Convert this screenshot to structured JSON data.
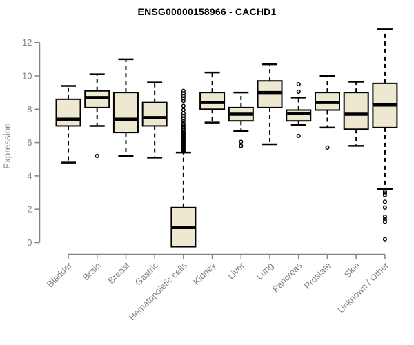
{
  "page": {
    "background": "#ffffff"
  },
  "chart_data": {
    "type": "boxplot",
    "title": "ENSG00000158966 - CACHD1",
    "ylabel": "Expression",
    "xlabel": "",
    "ylim": [
      0,
      12
    ],
    "yticks": [
      0,
      2,
      4,
      6,
      8,
      10,
      12
    ],
    "grid": false,
    "legend": "none",
    "categories": [
      "Bladder",
      "Brain",
      "Breast",
      "Gastric",
      "Hematopoietic cells",
      "Kidney",
      "Liver",
      "Lung",
      "Pancreas",
      "Prostate",
      "Skin",
      "Unknown / Other"
    ],
    "series": [
      {
        "category": "Bladder",
        "whisker_low": 4.8,
        "q1": 7.0,
        "median": 7.4,
        "q3": 8.6,
        "whisker_high": 9.4,
        "outliers": []
      },
      {
        "category": "Brain",
        "whisker_low": 7.0,
        "q1": 8.1,
        "median": 8.7,
        "q3": 9.1,
        "whisker_high": 10.1,
        "outliers": [
          5.2
        ]
      },
      {
        "category": "Breast",
        "whisker_low": 5.2,
        "q1": 6.6,
        "median": 7.4,
        "q3": 9.0,
        "whisker_high": 11.0,
        "outliers": []
      },
      {
        "category": "Gastric",
        "whisker_low": 5.1,
        "q1": 7.0,
        "median": 7.5,
        "q3": 8.4,
        "whisker_high": 9.6,
        "outliers": []
      },
      {
        "category": "Hematopoietic cells",
        "whisker_low": -0.25,
        "q1": -0.25,
        "median": 0.9,
        "q3": 2.1,
        "whisker_high": 5.4,
        "outliers": [
          9.1,
          8.95,
          8.8,
          8.65,
          8.5,
          8.2,
          7.95,
          7.75,
          7.6,
          7.45,
          7.3,
          7.15,
          7.05,
          6.95,
          6.85,
          6.75,
          6.65,
          6.6,
          6.55,
          6.5,
          6.45,
          6.4,
          6.35,
          6.3,
          6.25,
          6.2,
          6.15,
          6.1,
          6.05,
          6.0,
          5.95,
          5.9,
          5.85,
          5.8,
          5.75,
          5.7,
          5.65,
          5.6,
          5.55,
          5.5,
          5.45
        ]
      },
      {
        "category": "Kidney",
        "whisker_low": 7.2,
        "q1": 8.0,
        "median": 8.4,
        "q3": 9.0,
        "whisker_high": 10.2,
        "outliers": []
      },
      {
        "category": "Liver",
        "whisker_low": 6.7,
        "q1": 7.3,
        "median": 7.7,
        "q3": 8.1,
        "whisker_high": 9.0,
        "outliers": [
          6.05,
          5.8
        ]
      },
      {
        "category": "Lung",
        "whisker_low": 5.9,
        "q1": 8.1,
        "median": 9.0,
        "q3": 9.7,
        "whisker_high": 10.7,
        "outliers": []
      },
      {
        "category": "Pancreas",
        "whisker_low": 7.05,
        "q1": 7.3,
        "median": 7.75,
        "q3": 7.95,
        "whisker_high": 8.7,
        "outliers": [
          9.5,
          9.05,
          6.4
        ]
      },
      {
        "category": "Prostate",
        "whisker_low": 6.9,
        "q1": 7.95,
        "median": 8.4,
        "q3": 9.0,
        "whisker_high": 10.0,
        "outliers": [
          5.7
        ]
      },
      {
        "category": "Skin",
        "whisker_low": 5.8,
        "q1": 6.8,
        "median": 7.7,
        "q3": 9.0,
        "whisker_high": 9.65,
        "outliers": []
      },
      {
        "category": "Unknown / Other",
        "whisker_low": 3.2,
        "q1": 6.9,
        "median": 8.25,
        "q3": 9.55,
        "whisker_high": 12.8,
        "outliers": [
          3.05,
          2.95,
          2.85,
          2.45,
          2.1,
          1.55,
          1.4,
          1.25,
          0.2
        ]
      }
    ],
    "colors": {
      "box_fill": "#EDE8CF",
      "box_border": "#000000",
      "median": "#000000",
      "whisker": "#000000",
      "outlier": "#000000",
      "axis": "#828282",
      "title": "#000000"
    }
  }
}
